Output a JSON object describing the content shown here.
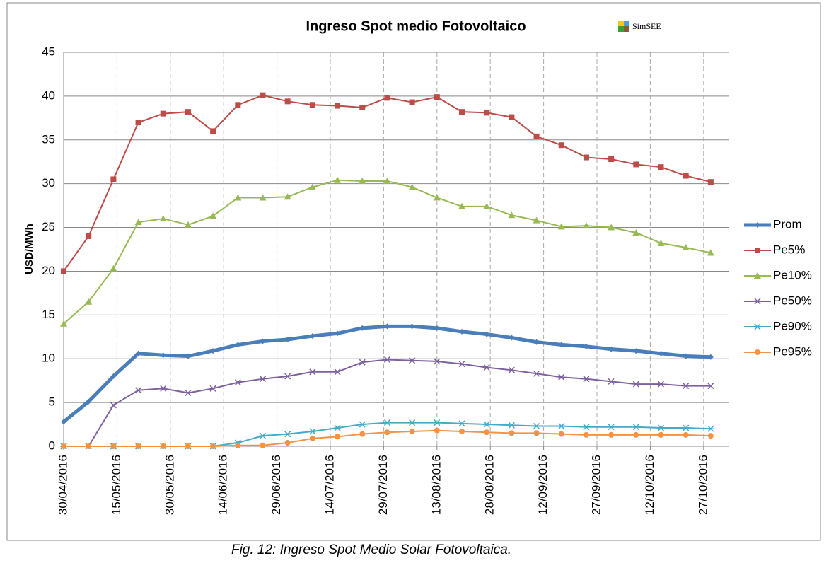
{
  "chart_data": {
    "type": "line",
    "title": "Ingreso Spot medio Fotovoltaico",
    "logo_text": "SimSEE",
    "y_label": "USD/MWh",
    "x": [
      "30/04/2016",
      "07/05/2016",
      "14/05/2016",
      "21/05/2016",
      "28/05/2016",
      "04/06/2016",
      "11/06/2016",
      "18/06/2016",
      "25/06/2016",
      "02/07/2016",
      "09/07/2016",
      "16/07/2016",
      "23/07/2016",
      "30/07/2016",
      "06/08/2016",
      "13/08/2016",
      "20/08/2016",
      "27/08/2016",
      "03/09/2016",
      "10/09/2016",
      "17/09/2016",
      "24/09/2016",
      "01/10/2016",
      "08/10/2016",
      "15/10/2016",
      "22/10/2016",
      "29/10/2016"
    ],
    "series": [
      {
        "name": "Prom",
        "color": "#4a7ebb",
        "marker": "diamond",
        "width": 5,
        "values": [
          2.8,
          5.1,
          8,
          10.6,
          10.4,
          10.3,
          10.9,
          11.6,
          12,
          12.2,
          12.6,
          12.9,
          13.5,
          13.7,
          13.7,
          13.5,
          13.1,
          12.8,
          12.4,
          11.9,
          11.6,
          11.4,
          11.1,
          10.9,
          10.6,
          10.3,
          10.2
        ]
      },
      {
        "name": "Pe5%",
        "color": "#be4b48",
        "marker": "square",
        "width": 2,
        "values": [
          20,
          24,
          30.5,
          37,
          38,
          38.2,
          36,
          39,
          40.1,
          39.4,
          39,
          38.9,
          38.7,
          39.8,
          39.3,
          39.9,
          38.2,
          38.1,
          37.6,
          35.4,
          34.4,
          33,
          32.8,
          32.2,
          31.9,
          30.9,
          30.2
        ]
      },
      {
        "name": "Pe10%",
        "color": "#98b954",
        "marker": "triangle",
        "width": 2,
        "values": [
          14,
          16.5,
          20.3,
          25.6,
          26,
          25.3,
          26.3,
          28.4,
          28.4,
          28.5,
          29.6,
          30.4,
          30.3,
          30.3,
          29.6,
          28.4,
          27.4,
          27.4,
          26.4,
          25.8,
          25.1,
          25.2,
          25,
          24.4,
          23.2,
          22.7,
          22.1
        ]
      },
      {
        "name": "Pe50%",
        "color": "#7d60a0",
        "marker": "x",
        "width": 2,
        "values": [
          0,
          0,
          4.7,
          6.4,
          6.6,
          6.1,
          6.6,
          7.3,
          7.7,
          8,
          8.5,
          8.5,
          9.6,
          9.9,
          9.8,
          9.7,
          9.4,
          9,
          8.7,
          8.3,
          7.9,
          7.7,
          7.4,
          7.1,
          7.1,
          6.9,
          6.9
        ]
      },
      {
        "name": "Pe90%",
        "color": "#46aac5",
        "marker": "asterisk",
        "width": 2,
        "values": [
          0,
          0,
          0,
          0,
          0,
          0,
          0,
          0.4,
          1.2,
          1.4,
          1.7,
          2.1,
          2.5,
          2.7,
          2.7,
          2.7,
          2.6,
          2.5,
          2.4,
          2.3,
          2.3,
          2.2,
          2.2,
          2.2,
          2.1,
          2.1,
          2
        ]
      },
      {
        "name": "Pe95%",
        "color": "#f69240",
        "marker": "circle",
        "width": 2,
        "values": [
          0,
          0,
          0,
          0,
          0,
          0,
          0,
          0.1,
          0.1,
          0.4,
          0.9,
          1.1,
          1.4,
          1.6,
          1.7,
          1.8,
          1.7,
          1.6,
          1.5,
          1.5,
          1.4,
          1.3,
          1.3,
          1.3,
          1.3,
          1.3,
          1.2
        ]
      }
    ],
    "xlim": [
      "30/04/2016",
      "03/11/2016"
    ],
    "xticks": [
      "30/04/2016",
      "15/05/2016",
      "30/05/2016",
      "14/06/2016",
      "29/06/2016",
      "14/07/2016",
      "29/07/2016",
      "13/08/2016",
      "28/08/2016",
      "12/09/2016",
      "27/09/2016",
      "12/10/2016",
      "27/10/2016"
    ],
    "ylim": [
      0,
      45
    ],
    "yticks": [
      0,
      5,
      10,
      15,
      20,
      25,
      30,
      35,
      40,
      45
    ],
    "grid": true,
    "legend": "right",
    "caption": "Fig. 12: Ingreso Spot Medio Solar Fotovoltaica."
  }
}
